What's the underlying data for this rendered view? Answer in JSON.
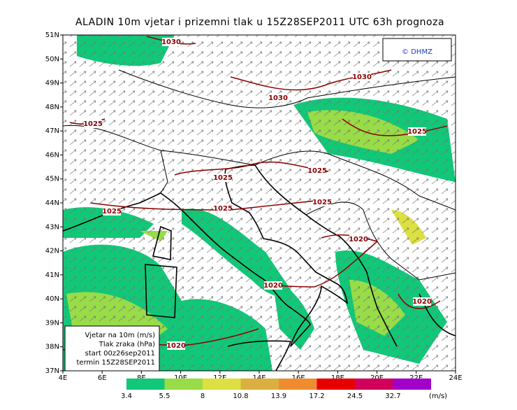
{
  "header": {
    "title": "ALADIN 10m vjetar i prizemni tlak u 15Z28SEP2011 UTC 63h prognoza",
    "copyright": "© DHMZ"
  },
  "map": {
    "lat_labels": [
      "51N",
      "50N",
      "49N",
      "48N",
      "47N",
      "46N",
      "45N",
      "44N",
      "43N",
      "42N",
      "41N",
      "40N",
      "39N",
      "38N",
      "37N"
    ],
    "lon_labels": [
      "4E",
      "6E",
      "8E",
      "10E",
      "12E",
      "14E",
      "16E",
      "18E",
      "20E",
      "22E",
      "24E"
    ],
    "isobar_labels": [
      "1030",
      "1030",
      "1030",
      "1025",
      "1025",
      "1025",
      "1025",
      "1025",
      "1025",
      "1025",
      "1020",
      "1020",
      "1020",
      "1020"
    ],
    "info": [
      "Vjetar na 10m (m/s)",
      "Tlak zraka (hPa)",
      "start 00z26sep2011",
      "termin 15Z28SEP2011"
    ]
  },
  "colorbar": {
    "labels": [
      3.4,
      5.5,
      8,
      10.8,
      13.9,
      17.2,
      24.5,
      32.7
    ],
    "colors": [
      "#10c878",
      "#98dc48",
      "#dce040",
      "#dcb040",
      "#f08c30",
      "#e80000",
      "#d0005c",
      "#a000c8"
    ],
    "unit": "(m/s)"
  }
}
